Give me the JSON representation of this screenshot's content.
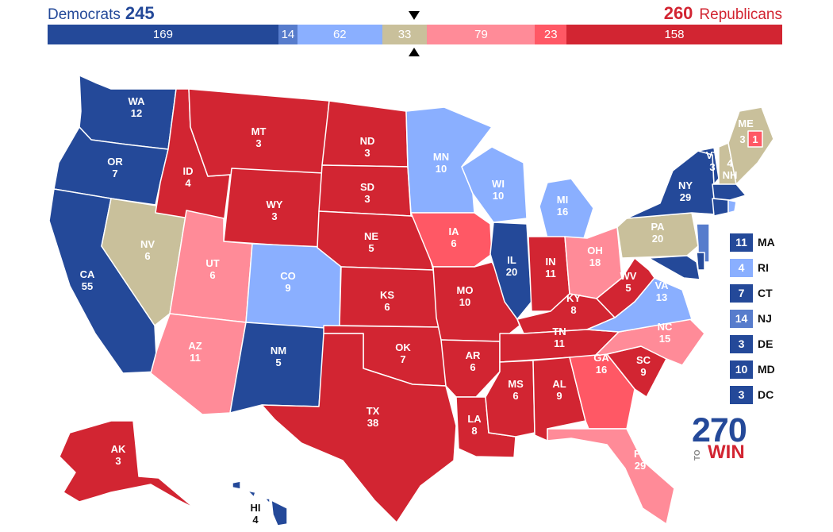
{
  "header": {
    "dem_label": "Democrats",
    "dem_total": "245",
    "rep_total": "260",
    "rep_label": "Republicans"
  },
  "bar": [
    {
      "value": 169,
      "color": "#244999"
    },
    {
      "value": 14,
      "color": "#577ccc"
    },
    {
      "value": 62,
      "color": "#8aafff"
    },
    {
      "value": 33,
      "color": "#c9c09b"
    },
    {
      "value": 79,
      "color": "#ff8b98"
    },
    {
      "value": 23,
      "color": "#ff5865"
    },
    {
      "value": 158,
      "color": "#d22532"
    }
  ],
  "colors": {
    "safe_dem": "#244999",
    "likely_dem": "#577ccc",
    "lean_dem": "#8aafff",
    "tossup": "#c9c09b",
    "lean_rep": "#ff8b98",
    "likely_rep": "#ff5865",
    "safe_rep": "#d22532"
  },
  "states": [
    {
      "abbr": "WA",
      "ev": "12"
    },
    {
      "abbr": "OR",
      "ev": "7"
    },
    {
      "abbr": "CA",
      "ev": "55"
    },
    {
      "abbr": "NV",
      "ev": "6"
    },
    {
      "abbr": "ID",
      "ev": "4"
    },
    {
      "abbr": "MT",
      "ev": "3"
    },
    {
      "abbr": "WY",
      "ev": "3"
    },
    {
      "abbr": "UT",
      "ev": "6"
    },
    {
      "abbr": "AZ",
      "ev": "11"
    },
    {
      "abbr": "CO",
      "ev": "9"
    },
    {
      "abbr": "NM",
      "ev": "5"
    },
    {
      "abbr": "ND",
      "ev": "3"
    },
    {
      "abbr": "SD",
      "ev": "3"
    },
    {
      "abbr": "NE",
      "ev": "5"
    },
    {
      "abbr": "KS",
      "ev": "6"
    },
    {
      "abbr": "OK",
      "ev": "7"
    },
    {
      "abbr": "TX",
      "ev": "38"
    },
    {
      "abbr": "MN",
      "ev": "10"
    },
    {
      "abbr": "IA",
      "ev": "6"
    },
    {
      "abbr": "MO",
      "ev": "10"
    },
    {
      "abbr": "AR",
      "ev": "6"
    },
    {
      "abbr": "LA",
      "ev": "8"
    },
    {
      "abbr": "WI",
      "ev": "10"
    },
    {
      "abbr": "IL",
      "ev": "20"
    },
    {
      "abbr": "MI",
      "ev": "16"
    },
    {
      "abbr": "IN",
      "ev": "11"
    },
    {
      "abbr": "OH",
      "ev": "18"
    },
    {
      "abbr": "KY",
      "ev": "8"
    },
    {
      "abbr": "TN",
      "ev": "11"
    },
    {
      "abbr": "MS",
      "ev": "6"
    },
    {
      "abbr": "AL",
      "ev": "9"
    },
    {
      "abbr": "GA",
      "ev": "16"
    },
    {
      "abbr": "FL",
      "ev": "29"
    },
    {
      "abbr": "SC",
      "ev": "9"
    },
    {
      "abbr": "NC",
      "ev": "15"
    },
    {
      "abbr": "VA",
      "ev": "13"
    },
    {
      "abbr": "WV",
      "ev": "5"
    },
    {
      "abbr": "PA",
      "ev": "20"
    },
    {
      "abbr": "NY",
      "ev": "29"
    },
    {
      "abbr": "VT",
      "ev": "3"
    },
    {
      "abbr": "NH",
      "ev": "4"
    },
    {
      "abbr": "ME",
      "ev": "3"
    },
    {
      "abbr": "ME2",
      "ev": "1"
    },
    {
      "abbr": "AK",
      "ev": "3"
    },
    {
      "abbr": "HI",
      "ev": "4"
    }
  ],
  "small_states": [
    {
      "abbr": "MA",
      "ev": "11",
      "color": "#244999"
    },
    {
      "abbr": "RI",
      "ev": "4",
      "color": "#8aafff"
    },
    {
      "abbr": "CT",
      "ev": "7",
      "color": "#244999"
    },
    {
      "abbr": "NJ",
      "ev": "14",
      "color": "#577ccc"
    },
    {
      "abbr": "DE",
      "ev": "3",
      "color": "#244999"
    },
    {
      "abbr": "MD",
      "ev": "10",
      "color": "#244999"
    },
    {
      "abbr": "DC",
      "ev": "3",
      "color": "#244999"
    }
  ],
  "logo": {
    "number": "270",
    "to": "TO",
    "win": "WIN"
  }
}
